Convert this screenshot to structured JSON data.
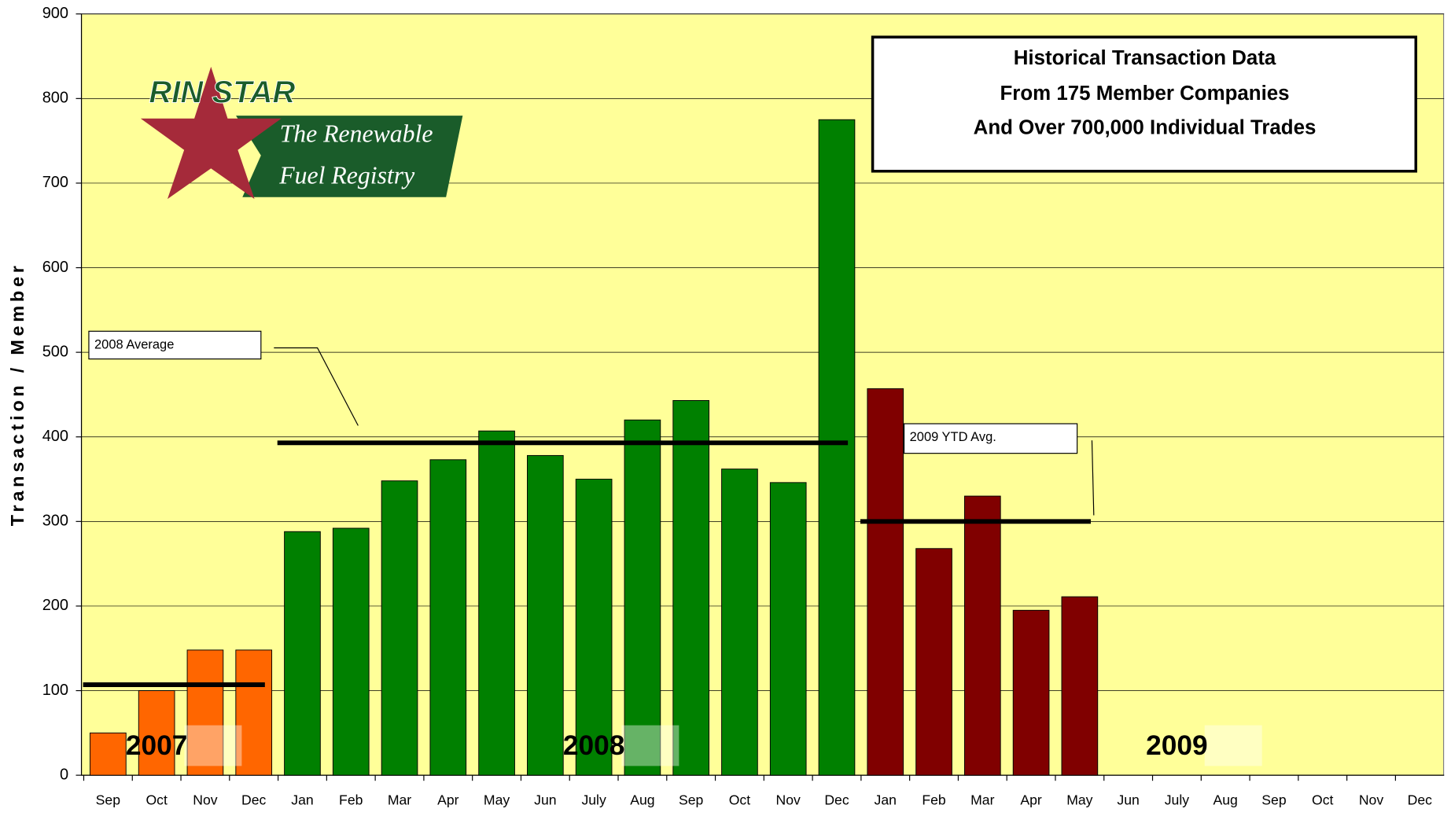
{
  "chart_data": {
    "type": "bar",
    "title": [
      "Historical Transaction Data",
      "From 175 Member Companies",
      "And Over 700,000 Individual Trades"
    ],
    "y_label": "Transaction / Member",
    "logo": {
      "brand": "RIN STAR",
      "tagline": [
        "The Renewable",
        "Fuel Registry"
      ]
    },
    "categories": [
      "Sep",
      "Oct",
      "Nov",
      "Dec",
      "Jan",
      "Feb",
      "Mar",
      "Apr",
      "May",
      "Jun",
      "July",
      "Aug",
      "Sep",
      "Oct",
      "Nov",
      "Dec",
      "Jan",
      "Feb",
      "Mar",
      "Apr",
      "May",
      "Jun",
      "July",
      "Aug",
      "Sep",
      "Oct",
      "Nov",
      "Dec"
    ],
    "series": [
      {
        "name": "2007",
        "color": "#ff6600",
        "average": 107,
        "values": [
          50,
          100,
          148,
          148,
          null,
          null,
          null,
          null,
          null,
          null,
          null,
          null,
          null,
          null,
          null,
          null,
          null,
          null,
          null,
          null,
          null,
          null,
          null,
          null,
          null,
          null,
          null,
          null
        ]
      },
      {
        "name": "2008",
        "color": "#008000",
        "average": 393,
        "average_label": "2008 Average",
        "values": [
          null,
          null,
          null,
          null,
          288,
          292,
          348,
          373,
          407,
          378,
          350,
          420,
          443,
          362,
          346,
          775,
          null,
          null,
          null,
          null,
          null,
          null,
          null,
          null,
          null,
          null,
          null,
          null
        ]
      },
      {
        "name": "2009",
        "color": "#800000",
        "average": 300,
        "average_label": "2009 YTD Avg.",
        "values": [
          null,
          null,
          null,
          null,
          null,
          null,
          null,
          null,
          null,
          null,
          null,
          null,
          null,
          null,
          null,
          null,
          457,
          268,
          330,
          195,
          211,
          null,
          null,
          null,
          null,
          null,
          null,
          null
        ]
      }
    ],
    "ylim": [
      0,
      900
    ],
    "yticks": [
      0,
      100,
      200,
      300,
      400,
      500,
      600,
      700,
      800,
      900
    ],
    "grid": true,
    "background": "#ffff99"
  }
}
